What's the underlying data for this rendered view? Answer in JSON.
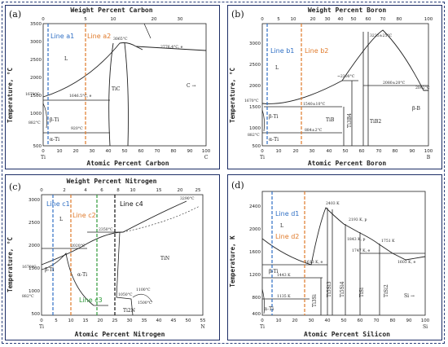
{
  "panels": {
    "a": {
      "label": "(a)",
      "top_title": "Weight Percent Carbon",
      "bottom_title": "Atomic Percent Carbon",
      "ylabel": "Temperature, °C",
      "y_ticks": [
        "3500",
        "3000",
        "2500",
        "2000",
        "1500",
        "1000",
        "500"
      ],
      "x_ticks": [
        "0",
        "10",
        "20",
        "30",
        "40",
        "50",
        "60",
        "70",
        "80",
        "90",
        "100"
      ],
      "top_ticks": [
        "0",
        "5",
        "10",
        "20",
        "30"
      ],
      "end_left": "Ti",
      "end_right": "C",
      "line1": "Line a1",
      "line2": "Line a2",
      "phases": [
        "L",
        "TiC",
        "β-Ti",
        "α-Ti",
        "C →"
      ],
      "annots": [
        "1670°C",
        "882°C",
        "1646.5°C, e",
        "920°C",
        "3065°C",
        "2776.4°C, e"
      ]
    },
    "b": {
      "label": "(b)",
      "top_title": "Weight Percent Boron",
      "bottom_title": "Atomic Percent Boron",
      "ylabel": "Temperature, °C",
      "y_ticks": [
        "3000",
        "2500",
        "2000",
        "1500",
        "1000",
        "500"
      ],
      "x_ticks": [
        "0",
        "10",
        "20",
        "30",
        "40",
        "50",
        "60",
        "70",
        "80",
        "90",
        "100"
      ],
      "top_ticks": [
        "0",
        "5",
        "10",
        "20",
        "30",
        "40",
        "50",
        "60",
        "70",
        "80",
        "100"
      ],
      "end_left": "Ti",
      "end_right": "B",
      "line1": "Line b1",
      "line2": "Line b2",
      "phases": [
        "L",
        "TiB",
        "Ti3B4",
        "TiB2",
        "β-Ti",
        "α-Ti",
        "β-B"
      ],
      "annots": [
        "1670°C",
        "882°C",
        "1540±10°C",
        "884±2°C",
        "~2200°C",
        "3225±25°C",
        "2080±20°C",
        "2092°C"
      ]
    },
    "c": {
      "label": "(c)",
      "top_title": "Weight Percent Nitrogen",
      "bottom_title": "Atomic Percent Nitrogen",
      "ylabel": "Temperature, °C",
      "y_ticks": [
        "3000",
        "2500",
        "2000",
        "1500",
        "1000",
        "500"
      ],
      "x_ticks": [
        "0",
        "5",
        "10",
        "15",
        "20",
        "25",
        "30",
        "35",
        "40",
        "45",
        "50",
        "55"
      ],
      "top_ticks": [
        "0",
        "2",
        "4",
        "6",
        "8",
        "10",
        "15",
        "20",
        "25"
      ],
      "end_left": "Ti",
      "end_right": "N",
      "line1": "Line c1",
      "line2": "Line c2",
      "line3": "Line c3",
      "line4": "Line c4",
      "phases": [
        "L",
        "β-Ti",
        "α-Ti",
        "TiN",
        "Ti2N"
      ],
      "annots": [
        "1670°C",
        "882°C",
        "2020°C",
        "2350°C",
        "3290°C",
        "1050°C",
        "1100°C",
        "1500°C"
      ]
    },
    "d": {
      "label": "(d)",
      "top_title": "",
      "bottom_title": "Atomic Percent Silicon",
      "ylabel": "Temperature, K",
      "y_ticks": [
        "2400",
        "2000",
        "1600",
        "1200",
        "800",
        "400"
      ],
      "x_ticks": [
        "0",
        "10",
        "20",
        "30",
        "40",
        "50",
        "60",
        "70",
        "80",
        "90",
        "100"
      ],
      "end_left": "Ti",
      "end_right": "Si",
      "line1": "Line d1",
      "line2": "Line d2",
      "phases": [
        "L",
        "β-Ti",
        "α-Ti",
        "Ti3Si",
        "Ti5Si3",
        "Ti5Si4",
        "TiSi",
        "TiSi2",
        "Si →"
      ],
      "annots": [
        "2403 K",
        "2193 K, p",
        "1613 K, e",
        "1443 K",
        "1135 K",
        "1843 K, p",
        "1747 K, e",
        "1751 K",
        "1603 K, e"
      ]
    }
  },
  "colors": {
    "line1": "#2f6fc4",
    "line2": "#e07a2a",
    "line3": "#2f9a3a",
    "line4": "#111111",
    "border": "#1d2e66"
  }
}
